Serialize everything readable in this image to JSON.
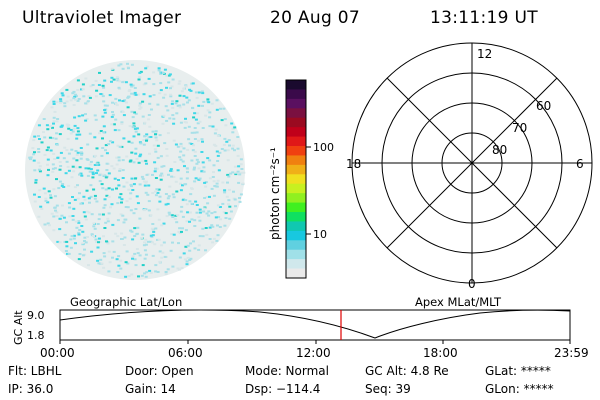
{
  "header": {
    "instrument": "Ultraviolet Imager",
    "date": "20 Aug 07",
    "time": "13:11:19 UT"
  },
  "colorbar": {
    "unit_label": "photon cm⁻²s⁻¹",
    "tick_labels": [
      "100",
      "10"
    ],
    "colors": [
      "#1a0a2e",
      "#3a0a4a",
      "#5a1060",
      "#7a1040",
      "#9a0a20",
      "#c0001a",
      "#e01818",
      "#f04010",
      "#f08010",
      "#f0b018",
      "#f0e020",
      "#c8f020",
      "#90f020",
      "#40f020",
      "#10e060",
      "#10c8b0",
      "#18c8e0",
      "#60d0e0",
      "#a0e0e8",
      "#d0e8ec",
      "#eaeaea"
    ]
  },
  "polar": {
    "hour_labels": {
      "top": "12",
      "left": "18",
      "right": "6",
      "bottom": "0"
    },
    "lat_labels": [
      "60",
      "70",
      "80"
    ]
  },
  "map_labels": {
    "left": "Geographic Lat/Lon",
    "right": "Apex MLat/MLT"
  },
  "gc_alt_plot": {
    "axis_label": "GC Alt",
    "y_ticks": [
      "9.0",
      "1.8"
    ],
    "x_ticks": [
      "00:00",
      "06:00",
      "12:00",
      "18:00",
      "23:59"
    ],
    "current_marker_color": "#e00000"
  },
  "status": {
    "flt": "Flt: LBHL",
    "ip": "IP: 36.0",
    "door": "Door: Open",
    "gain": "Gain: 14",
    "mode": "Mode: Normal",
    "dsp": "Dsp: −114.4",
    "gc_alt": "GC Alt: 4.8 Re",
    "seq": "Seq: 39",
    "glat": "GLat: *****",
    "glon": "GLon: *****"
  }
}
